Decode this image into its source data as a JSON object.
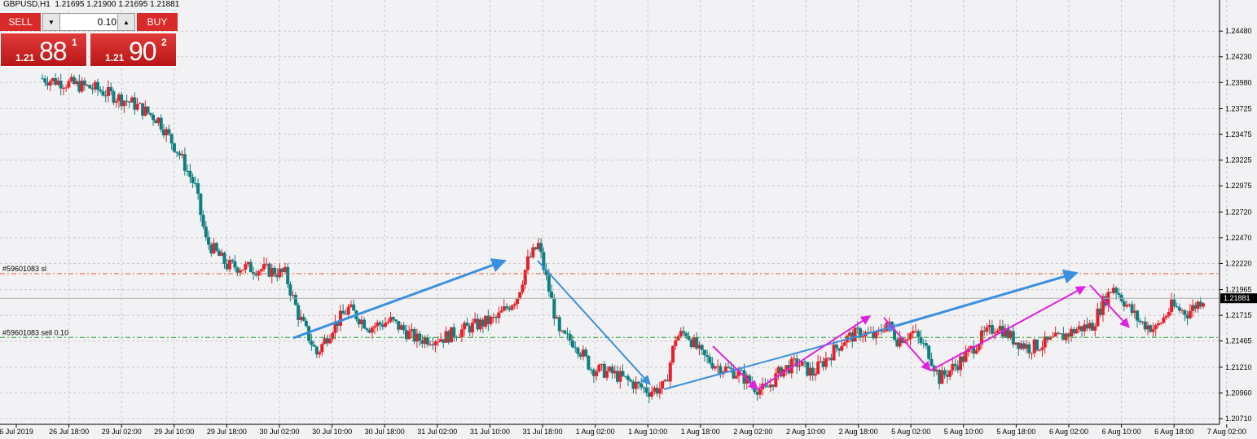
{
  "header": {
    "symbol_line": "GBPUSD,H1  1.21695 1.21900 1.21695 1.21881"
  },
  "trade_panel": {
    "sell_label": "SELL",
    "buy_label": "BUY",
    "lot_value": "0.10",
    "sell_price_small": "1.21",
    "sell_price_big": "88",
    "sell_price_sup": "1",
    "buy_price_small": "1.21",
    "buy_price_big": "90",
    "buy_price_sup": "2"
  },
  "colors": {
    "bull": "#e8202a",
    "bear": "#0f7e7e",
    "background": "#f2f2f4",
    "grid": "#c8c8cc",
    "sl_line": "#e4572e",
    "order_line": "#2a9d3a",
    "blue_arrow": "#3b8fe0",
    "magenta_arrow": "#e020e0"
  },
  "chart_data": {
    "type": "candlestick",
    "title": "GBPUSD,H1",
    "ylim": [
      1.2071,
      1.2464
    ],
    "y_ticks": [
      "1.24480",
      "1.24230",
      "1.23980",
      "1.23725",
      "1.23475",
      "1.23225",
      "1.22975",
      "1.22720",
      "1.22470",
      "1.22220",
      "1.21965",
      "1.21715",
      "1.21465",
      "1.21210",
      "1.20960",
      "1.20710"
    ],
    "x_ticks": [
      "6 Jul 2019",
      "26 Jul 18:00",
      "29 Jul 02:00",
      "29 Jul 10:00",
      "29 Jul 18:00",
      "30 Jul 02:00",
      "30 Jul 10:00",
      "30 Jul 18:00",
      "31 Jul 02:00",
      "31 Jul 10:00",
      "31 Jul 18:00",
      "1 Aug 02:00",
      "1 Aug 10:00",
      "1 Aug 18:00",
      "2 Aug 02:00",
      "2 Aug 10:00",
      "2 Aug 18:00",
      "5 Aug 02:00",
      "5 Aug 10:00",
      "5 Aug 18:00",
      "6 Aug 02:00",
      "6 Aug 10:00",
      "6 Aug 18:00",
      "7 Aug 02:00"
    ],
    "current_price": "1.21881",
    "lines": [
      {
        "label": "#59601083 sl",
        "price": 1.2212
      },
      {
        "label": "#59601083 sell 0.10",
        "price": 1.215
      }
    ],
    "keypoints": [
      [
        0,
        1.2402
      ],
      [
        20,
        1.2392
      ],
      [
        34,
        1.2378
      ],
      [
        44,
        1.2362
      ],
      [
        52,
        1.2328
      ],
      [
        58,
        1.2296
      ],
      [
        62,
        1.2244
      ],
      [
        70,
        1.222
      ],
      [
        84,
        1.2216
      ],
      [
        92,
        1.2212
      ],
      [
        97,
        1.2172
      ],
      [
        104,
        1.2134
      ],
      [
        110,
        1.216
      ],
      [
        116,
        1.2178
      ],
      [
        124,
        1.216
      ],
      [
        132,
        1.2166
      ],
      [
        142,
        1.2148
      ],
      [
        152,
        1.215
      ],
      [
        162,
        1.216
      ],
      [
        172,
        1.2168
      ],
      [
        180,
        1.219
      ],
      [
        184,
        1.2224
      ],
      [
        188,
        1.224
      ],
      [
        192,
        1.2196
      ],
      [
        196,
        1.2152
      ],
      [
        202,
        1.2145
      ],
      [
        208,
        1.212
      ],
      [
        216,
        1.2115
      ],
      [
        224,
        1.2105
      ],
      [
        230,
        1.2098
      ],
      [
        236,
        1.2102
      ],
      [
        240,
        1.215
      ],
      [
        244,
        1.2155
      ],
      [
        250,
        1.2132
      ],
      [
        256,
        1.2122
      ],
      [
        264,
        1.2115
      ],
      [
        270,
        1.2102
      ],
      [
        274,
        1.2098
      ],
      [
        280,
        1.2118
      ],
      [
        286,
        1.2125
      ],
      [
        292,
        1.2115
      ],
      [
        298,
        1.2132
      ],
      [
        304,
        1.2148
      ],
      [
        310,
        1.2155
      ],
      [
        316,
        1.215
      ],
      [
        320,
        1.2165
      ],
      [
        324,
        1.2148
      ],
      [
        330,
        1.2155
      ],
      [
        336,
        1.2135
      ],
      [
        340,
        1.211
      ],
      [
        344,
        1.2118
      ],
      [
        350,
        1.2132
      ],
      [
        356,
        1.215
      ],
      [
        362,
        1.2162
      ],
      [
        368,
        1.2148
      ],
      [
        374,
        1.214
      ],
      [
        380,
        1.2144
      ],
      [
        386,
        1.215
      ],
      [
        392,
        1.2158
      ],
      [
        398,
        1.2162
      ],
      [
        402,
        1.2184
      ],
      [
        406,
        1.22
      ],
      [
        412,
        1.2178
      ],
      [
        416,
        1.2165
      ],
      [
        422,
        1.2158
      ],
      [
        428,
        1.218
      ],
      [
        434,
        1.2174
      ],
      [
        440,
        1.2188
      ]
    ],
    "series_description_note": ""
  }
}
